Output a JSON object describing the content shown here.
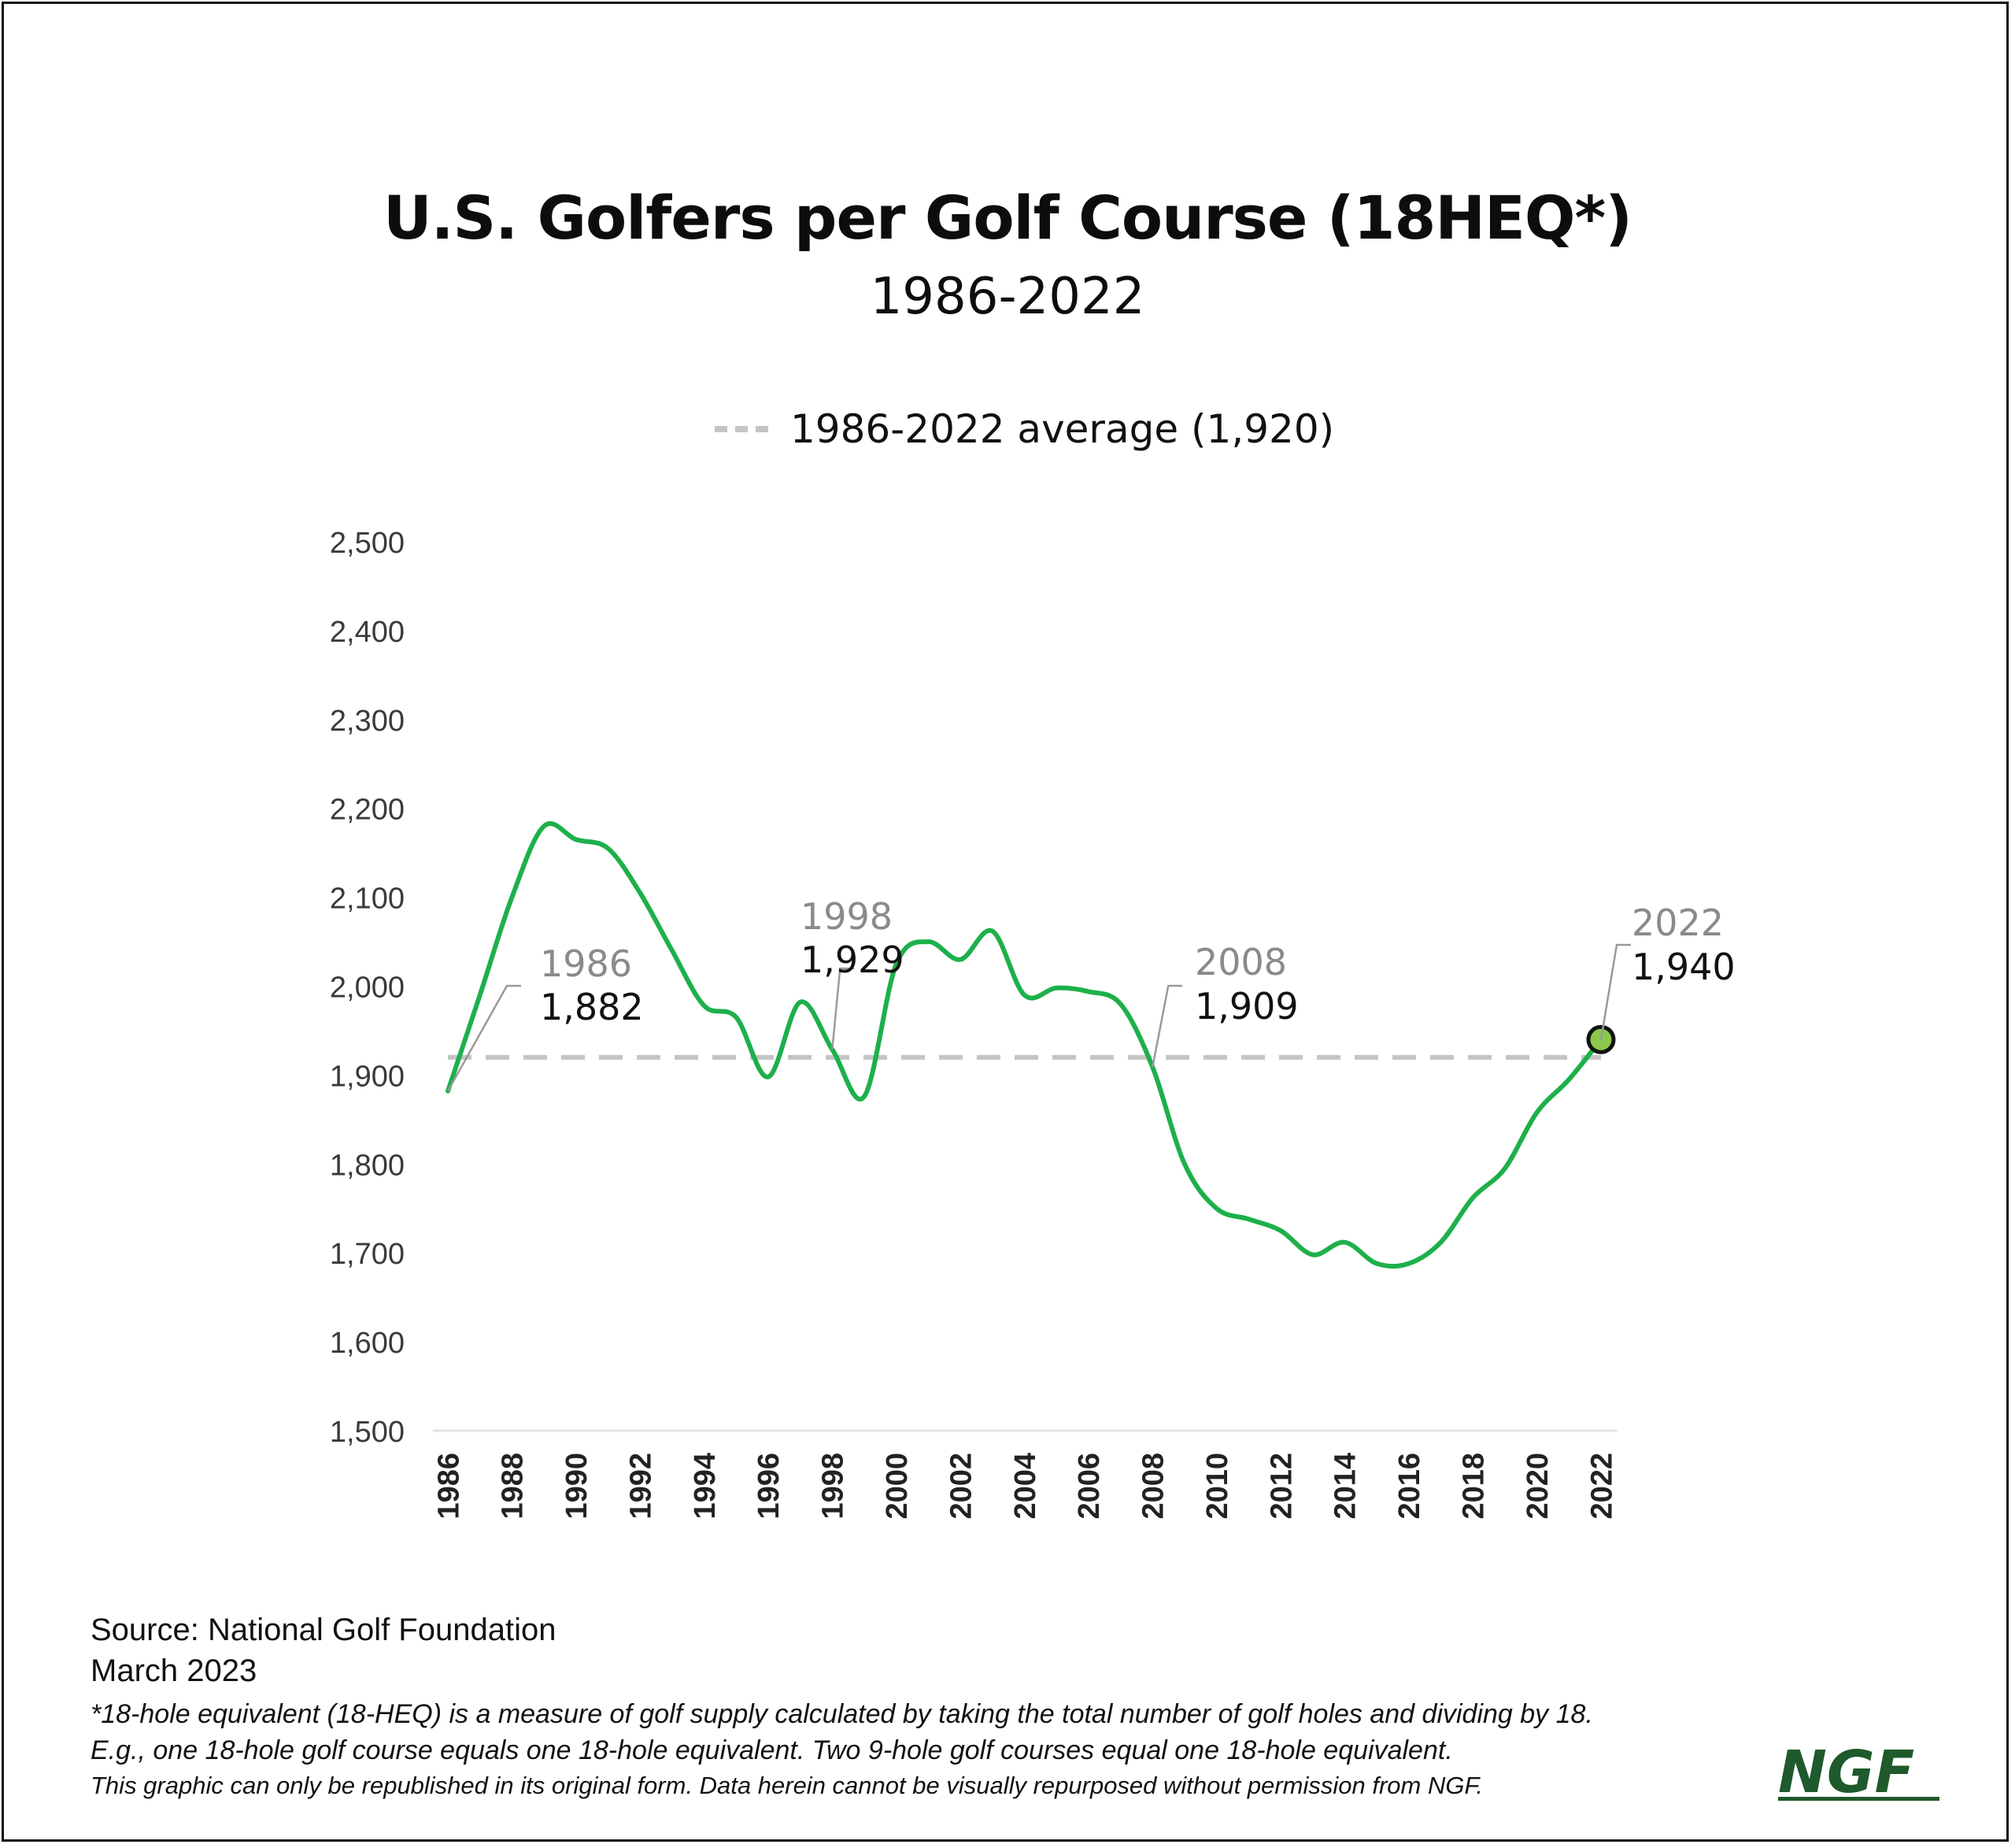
{
  "title": "U.S. Golfers per Golf Course (18HEQ*)",
  "subtitle": "1986-2022",
  "legend": {
    "label": "1986-2022 average (1,920)"
  },
  "source": "Source: National Golf Foundation",
  "date": "March 2023",
  "notes": [
    "*18-hole equivalent (18-HEQ) is a measure of golf supply calculated by taking the total number of golf holes and dividing by 18.",
    "E.g., one 18-hole golf course equals one 18-hole equivalent. Two 9-hole golf courses equal one 18-hole equivalent.",
    "This graphic can only be republished in its original form. Data herein cannot be visually repurposed without permission from NGF."
  ],
  "logo_text": "NGF",
  "colors": {
    "line": "#1db04a",
    "average": "#c4c4c4",
    "marker_fill": "#8cc84b",
    "logo": "#1e5a2c",
    "callout_year": "#8a8a8a",
    "callout_value": "#111111"
  },
  "chart_data": {
    "type": "line",
    "x": [
      1986,
      1987,
      1988,
      1989,
      1990,
      1991,
      1992,
      1993,
      1994,
      1995,
      1996,
      1997,
      1998,
      1999,
      2000,
      2001,
      2002,
      2003,
      2004,
      2005,
      2006,
      2007,
      2008,
      2009,
      2010,
      2011,
      2012,
      2013,
      2014,
      2015,
      2016,
      2017,
      2018,
      2019,
      2020,
      2021,
      2022
    ],
    "series": [
      {
        "values": [
          1882,
          1990,
          2100,
          2180,
          2165,
          2155,
          2105,
          2040,
          1978,
          1965,
          1898,
          1982,
          1929,
          1876,
          2025,
          2050,
          2030,
          2062,
          1990,
          1998,
          1994,
          1980,
          1909,
          1800,
          1750,
          1738,
          1725,
          1698,
          1712,
          1688,
          1688,
          1712,
          1762,
          1795,
          1858,
          1895,
          1940
        ]
      }
    ],
    "average": 1920,
    "ylim": [
      1500,
      2500
    ],
    "yticks": [
      1500,
      1600,
      1700,
      1800,
      1900,
      2000,
      2100,
      2200,
      2300,
      2400,
      2500
    ],
    "yticklabels": [
      "1,500",
      "1,600",
      "1,700",
      "1,800",
      "1,900",
      "2,000",
      "2,100",
      "2,200",
      "2,300",
      "2,400",
      "2,500"
    ],
    "xticks": [
      1986,
      1988,
      1990,
      1992,
      1994,
      1996,
      1998,
      2000,
      2002,
      2004,
      2006,
      2008,
      2010,
      2012,
      2014,
      2016,
      2018,
      2020,
      2022
    ],
    "xticklabels": [
      "1986",
      "1988",
      "1990",
      "1992",
      "1994",
      "1996",
      "1998",
      "2000",
      "2002",
      "2004",
      "2006",
      "2008",
      "2010",
      "2012",
      "2014",
      "2016",
      "2018",
      "2020",
      "2022"
    ],
    "annotations": [
      {
        "year": 1986,
        "year_label": "1986",
        "value_label": "1,882"
      },
      {
        "year": 1998,
        "year_label": "1998",
        "value_label": "1,929"
      },
      {
        "year": 2008,
        "year_label": "2008",
        "value_label": "1,909"
      },
      {
        "year": 2022,
        "year_label": "2022",
        "value_label": "1,940"
      }
    ],
    "highlight_year": 2022,
    "grid": false
  }
}
